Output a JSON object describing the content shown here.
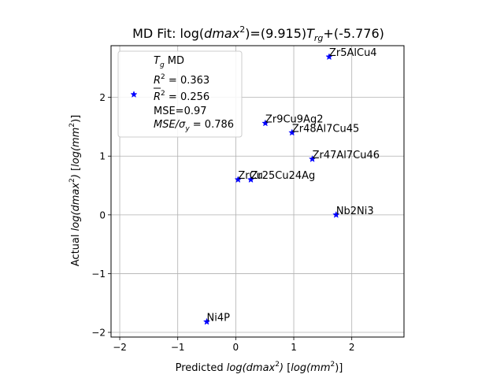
{
  "chart_data": {
    "type": "scatter",
    "title": {
      "prefix": "MD Fit: log(",
      "var": "dmax",
      "sup": "2",
      "mid": ")=(9.915)",
      "tvar": "T",
      "tsub": "rg",
      "suffix": "+(-5.776)"
    },
    "xlabel": {
      "prefix": "Predicted ",
      "var": "log(dmax",
      "sup": "2",
      "close": ")",
      "unit_open": " [",
      "unit": "log(mm",
      "unit_sup": "2",
      "unit_close": ")]"
    },
    "ylabel": {
      "prefix": "Actual ",
      "var": "log(dmax",
      "sup": "2",
      "close": ")",
      "unit_open": " [",
      "unit": "log(mm",
      "unit_sup": "2",
      "unit_close": ")]"
    },
    "xlim": [
      -2.15,
      2.9
    ],
    "ylim": [
      -2.08,
      2.88
    ],
    "xticks": [
      -2,
      -1,
      0,
      1,
      2
    ],
    "yticks": [
      -2,
      -1,
      0,
      1,
      2
    ],
    "grid": true,
    "marker_color": "#0000ff",
    "legend": {
      "position": "top-left",
      "series_var": "T",
      "series_sub": "g",
      "series_rest": " MD",
      "r2_base": "R",
      "r2_sup": "2",
      "r2_value": " = 0.363",
      "r2adj_value": " = 0.256",
      "mse": "MSE=0.97",
      "mse_sigma_a": "MSE/σ",
      "mse_sigma_sub": "y",
      "mse_sigma_value": " = 0.786"
    },
    "points": [
      {
        "label": "Zr5AlCu4",
        "x": 1.61,
        "y": 2.69
      },
      {
        "label": "Zr9Cu9Ag2",
        "x": 0.51,
        "y": 1.56
      },
      {
        "label": "Zr48Al7Cu45",
        "x": 0.97,
        "y": 1.4
      },
      {
        "label": "Zr47Al7Cu46",
        "x": 1.32,
        "y": 0.95
      },
      {
        "label": "ZrCu",
        "x": 0.04,
        "y": 0.6
      },
      {
        "label": "Zr25Cu24Ag",
        "x": 0.26,
        "y": 0.6
      },
      {
        "label": "Nb2Ni3",
        "x": 1.73,
        "y": 0.0
      },
      {
        "label": "Ni4P",
        "x": -0.5,
        "y": -1.82
      }
    ]
  }
}
